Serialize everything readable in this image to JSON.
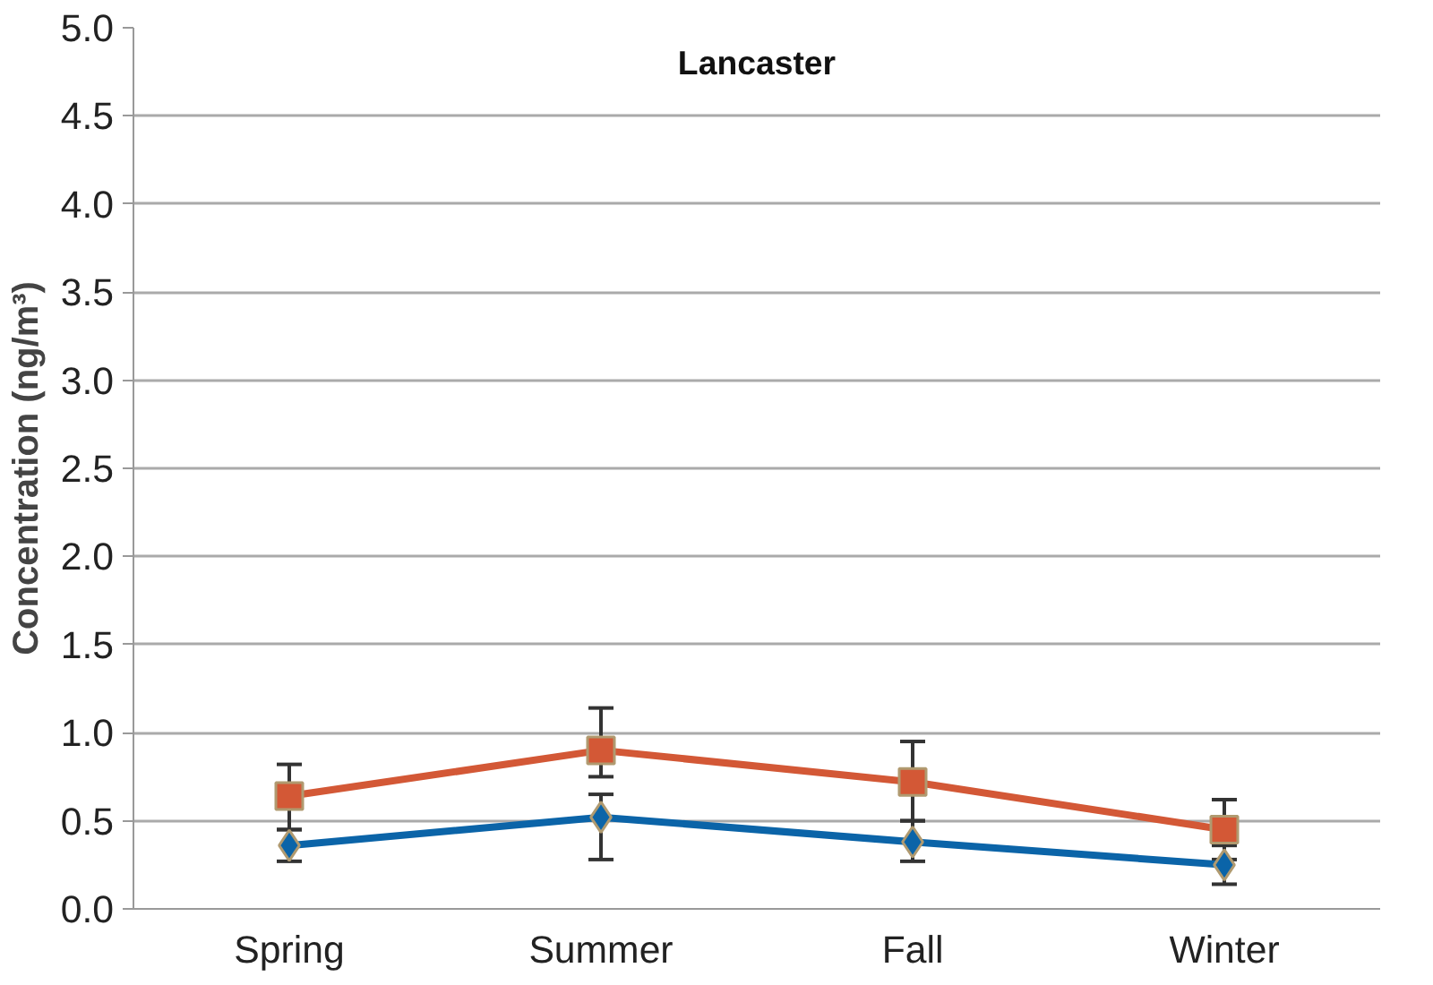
{
  "chart_data": {
    "type": "line",
    "title": "Lancaster",
    "ylabel": "Concentration (ng/m³)",
    "categories": [
      "Spring",
      "Summer",
      "Fall",
      "Winter"
    ],
    "series": [
      {
        "color": "#0b64a8",
        "marker": "diamond",
        "values": [
          0.36,
          0.52,
          0.38,
          0.25
        ],
        "errors": [
          [
            0.27,
            0.45
          ],
          [
            0.28,
            0.65
          ],
          [
            0.27,
            0.5
          ],
          [
            0.14,
            0.36
          ]
        ]
      },
      {
        "color": "#d35836",
        "marker": "square",
        "values": [
          0.64,
          0.9,
          0.72,
          0.45
        ],
        "errors": [
          [
            0.45,
            0.82
          ],
          [
            0.75,
            1.14
          ],
          [
            0.5,
            0.95
          ],
          [
            0.28,
            0.62
          ]
        ]
      }
    ],
    "ylim": [
      0,
      5
    ],
    "yticks": [
      {
        "value": 0,
        "label": "0.0"
      },
      {
        "value": 0.5,
        "label": "0.5"
      },
      {
        "value": 1,
        "label": "1.0"
      },
      {
        "value": 1.5,
        "label": "1.5"
      },
      {
        "value": 2,
        "label": "2.0"
      },
      {
        "value": 2.5,
        "label": "2.5"
      },
      {
        "value": 3,
        "label": "3.0"
      },
      {
        "value": 3.5,
        "label": "3.5"
      },
      {
        "value": 4,
        "label": "4.0"
      },
      {
        "value": 4.5,
        "label": "4.5"
      },
      {
        "value": 5,
        "label": "5.0"
      }
    ],
    "grid": "y",
    "line_style": "solid"
  }
}
